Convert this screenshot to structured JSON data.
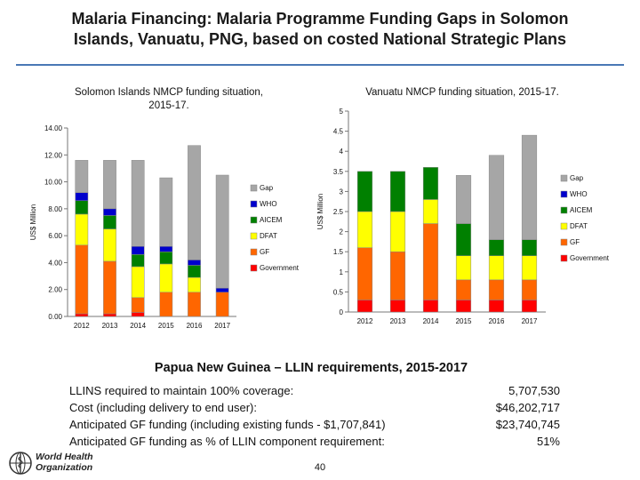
{
  "slide": {
    "title_line1": "Malaria Financing: Malaria Programme Funding Gaps in Solomon",
    "title_line2": "Islands, Vanuatu, PNG, based on costed National Strategic Plans",
    "page_number": "40",
    "logo_text_line1": "World Health",
    "logo_text_line2": "Organization"
  },
  "colors": {
    "Gap": "#a6a6a6",
    "WHO": "#0000cc",
    "AICEM": "#008000",
    "DFAT": "#ffff00",
    "GF": "#ff6600",
    "Government": "#ff0000"
  },
  "chart_data": [
    {
      "type": "bar",
      "stacked": true,
      "title_line1": "Solomon Islands NMCP funding situation,",
      "title_line2": "2015-17.",
      "ylabel": "US$ Million",
      "ylim": [
        0,
        14
      ],
      "yticks": [
        "0.00",
        "2.00",
        "4.00",
        "6.00",
        "8.00",
        "10.00",
        "12.00",
        "14.00"
      ],
      "categories": [
        "2012",
        "2013",
        "2014",
        "2015",
        "2016",
        "2017"
      ],
      "legend_position": "right",
      "series": [
        {
          "name": "Government",
          "values": [
            0.2,
            0.2,
            0.3,
            0.0,
            0.0,
            0.0
          ]
        },
        {
          "name": "GF",
          "values": [
            5.1,
            3.9,
            1.1,
            1.8,
            1.8,
            1.8
          ]
        },
        {
          "name": "DFAT",
          "values": [
            2.3,
            2.4,
            2.3,
            2.1,
            1.1,
            0.0
          ]
        },
        {
          "name": "AICEM",
          "values": [
            1.0,
            1.0,
            0.9,
            0.9,
            0.9,
            0.0
          ]
        },
        {
          "name": "WHO",
          "values": [
            0.6,
            0.5,
            0.6,
            0.4,
            0.4,
            0.3
          ]
        },
        {
          "name": "Gap",
          "values": [
            2.4,
            3.6,
            6.4,
            5.1,
            8.5,
            8.4
          ]
        }
      ]
    },
    {
      "type": "bar",
      "stacked": true,
      "title_line1": "Vanuatu NMCP funding situation, 2015-17.",
      "title_line2": "",
      "ylabel": "US$ Million",
      "ylim": [
        0,
        5
      ],
      "yticks": [
        "0",
        "0.5",
        "1",
        "1.5",
        "2",
        "2.5",
        "3",
        "3.5",
        "4",
        "4.5",
        "5"
      ],
      "categories": [
        "2012",
        "2013",
        "2014",
        "2015",
        "2016",
        "2017"
      ],
      "legend_position": "right",
      "series": [
        {
          "name": "Government",
          "values": [
            0.3,
            0.3,
            0.3,
            0.3,
            0.3,
            0.3
          ]
        },
        {
          "name": "GF",
          "values": [
            1.3,
            1.2,
            1.9,
            0.5,
            0.5,
            0.5
          ]
        },
        {
          "name": "DFAT",
          "values": [
            0.9,
            1.0,
            0.6,
            0.6,
            0.6,
            0.6
          ]
        },
        {
          "name": "AICEM",
          "values": [
            1.0,
            1.0,
            0.8,
            0.8,
            0.4,
            0.4
          ]
        },
        {
          "name": "WHO",
          "values": [
            0,
            0,
            0,
            0,
            0,
            0
          ]
        },
        {
          "name": "Gap",
          "values": [
            0.0,
            0.0,
            0.0,
            1.2,
            2.1,
            2.6
          ]
        }
      ]
    }
  ],
  "png": {
    "title": "Papua New Guinea – LLIN requirements, 2015-2017",
    "rows": [
      {
        "label": "LLINS required to maintain 100% coverage:",
        "value": "5,707,530"
      },
      {
        "label": "Cost (including delivery to end user):",
        "value": "$46,202,717"
      },
      {
        "label": "Anticipated GF funding (including existing funds - $1,707,841)",
        "value": "$23,740,745"
      },
      {
        "label": "Anticipated GF funding as % of LLIN component requirement:",
        "value": "51%"
      }
    ]
  }
}
